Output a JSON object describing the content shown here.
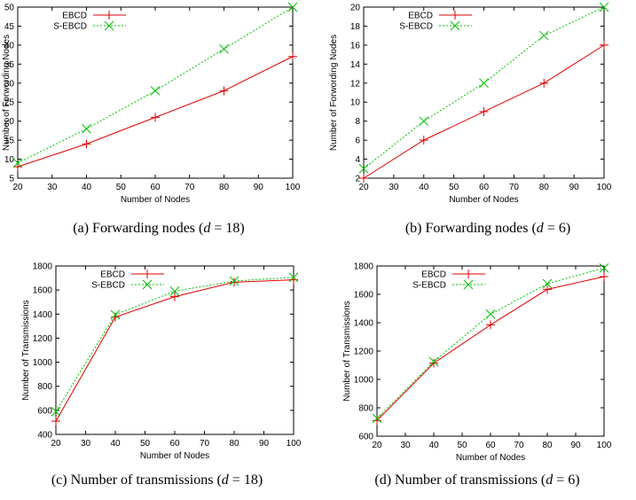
{
  "chart_data": [
    {
      "id": "a",
      "type": "line",
      "caption": {
        "prefix": "(a)  Forwarding nodes (",
        "var": "d",
        "eq": " = 18)"
      },
      "xlabel": "Number of Nodes",
      "ylabel": "Number of Forwording Nodes",
      "x": [
        20,
        40,
        60,
        80,
        100
      ],
      "xlim": [
        20,
        100
      ],
      "ylim": [
        5,
        50
      ],
      "xticks": [
        20,
        30,
        40,
        50,
        60,
        70,
        80,
        90,
        100
      ],
      "yticks": [
        5,
        10,
        15,
        20,
        25,
        30,
        35,
        40,
        45,
        50
      ],
      "legend": "top-left",
      "series": [
        {
          "name": "EBCD",
          "color": "#e00000",
          "marker": "plus",
          "dash": "solid",
          "values": [
            8,
            14,
            21,
            28,
            37
          ]
        },
        {
          "name": "S-EBCD",
          "color": "#00c000",
          "marker": "x",
          "dash": "dotted",
          "values": [
            9,
            18,
            28,
            39,
            50
          ]
        }
      ]
    },
    {
      "id": "b",
      "type": "line",
      "caption": {
        "prefix": "(b)  Forwarding nodes (",
        "var": "d",
        "eq": " = 6)"
      },
      "xlabel": "Number of Nodes",
      "ylabel": "Number of Forwording Nodes",
      "x": [
        20,
        40,
        60,
        80,
        100
      ],
      "xlim": [
        20,
        100
      ],
      "ylim": [
        2,
        20
      ],
      "xticks": [
        20,
        30,
        40,
        50,
        60,
        70,
        80,
        90,
        100
      ],
      "yticks": [
        2,
        4,
        6,
        8,
        10,
        12,
        14,
        16,
        18,
        20
      ],
      "legend": "top-left",
      "series": [
        {
          "name": "EBCD",
          "color": "#e00000",
          "marker": "plus",
          "dash": "solid",
          "values": [
            2,
            6,
            9,
            12,
            16
          ]
        },
        {
          "name": "S-EBCD",
          "color": "#00c000",
          "marker": "x",
          "dash": "dotted",
          "values": [
            3,
            8,
            12,
            17,
            20
          ]
        }
      ]
    },
    {
      "id": "c",
      "type": "line",
      "caption": {
        "prefix": "(c)  Number of transmissions (",
        "var": "d",
        "eq": " = 18)"
      },
      "xlabel": "Number of Nodes",
      "ylabel": "Number of Transmissions",
      "x": [
        20,
        40,
        60,
        80,
        100
      ],
      "xlim": [
        20,
        100
      ],
      "ylim": [
        400,
        1800
      ],
      "xticks": [
        20,
        30,
        40,
        50,
        60,
        70,
        80,
        90,
        100
      ],
      "yticks": [
        400,
        600,
        800,
        1000,
        1200,
        1400,
        1600,
        1800
      ],
      "legend": "top-left",
      "series": [
        {
          "name": "EBCD",
          "color": "#e00000",
          "marker": "plus",
          "dash": "solid",
          "values": [
            510,
            1375,
            1545,
            1665,
            1685
          ]
        },
        {
          "name": "S-EBCD",
          "color": "#00c000",
          "marker": "x",
          "dash": "dotted",
          "values": [
            590,
            1395,
            1590,
            1675,
            1705
          ]
        }
      ]
    },
    {
      "id": "d",
      "type": "line",
      "caption": {
        "prefix": "(d)  Number of transmissions (",
        "var": "d",
        "eq": " = 6)"
      },
      "xlabel": "Number of Nodes",
      "ylabel": "Number of Transmissions",
      "x": [
        20,
        40,
        60,
        80,
        100
      ],
      "xlim": [
        20,
        100
      ],
      "ylim": [
        600,
        1800
      ],
      "xticks": [
        20,
        30,
        40,
        50,
        60,
        70,
        80,
        90,
        100
      ],
      "yticks": [
        600,
        800,
        1000,
        1200,
        1400,
        1600,
        1800
      ],
      "legend": "top-left",
      "series": [
        {
          "name": "EBCD",
          "color": "#e00000",
          "marker": "plus",
          "dash": "solid",
          "values": [
            710,
            1115,
            1385,
            1635,
            1725
          ]
        },
        {
          "name": "S-EBCD",
          "color": "#00c000",
          "marker": "x",
          "dash": "dotted",
          "values": [
            725,
            1125,
            1460,
            1675,
            1785
          ]
        }
      ]
    }
  ]
}
